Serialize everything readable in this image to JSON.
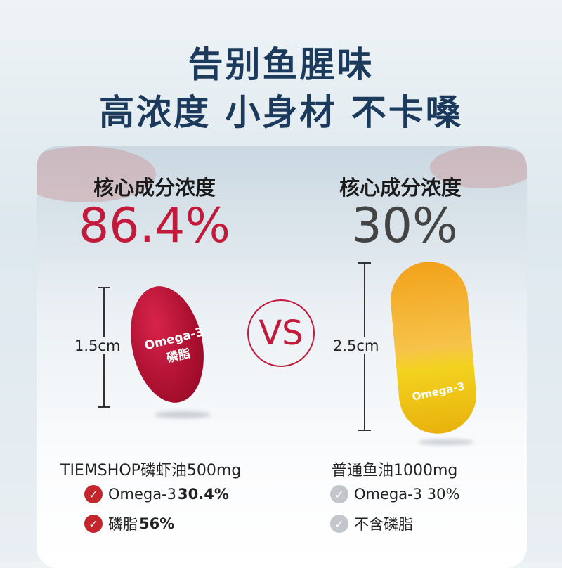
{
  "headline": {
    "line1": "告别鱼腥味",
    "line2": "高浓度 小身材 不卡嗓"
  },
  "left": {
    "label": "核心成分浓度",
    "value": "86.4%",
    "size": "1.5cm",
    "capsule_text1": "Omega-3",
    "capsule_text2": "磷脂",
    "product": "TIEMSHOP磷虾油500mg",
    "features": [
      {
        "name": "Omega-3 ",
        "value": "30.4%"
      },
      {
        "name": "磷脂 ",
        "value": "56%"
      }
    ],
    "color": "#c31a3c"
  },
  "vs": "VS",
  "right": {
    "label": "核心成分浓度",
    "value": "30%",
    "size": "2.5cm",
    "capsule_text": "Omega-3",
    "product": "普通鱼油1000mg",
    "features": [
      {
        "name": "Omega-3 30%"
      },
      {
        "name": "不含磷脂"
      }
    ],
    "color": "#444444"
  }
}
